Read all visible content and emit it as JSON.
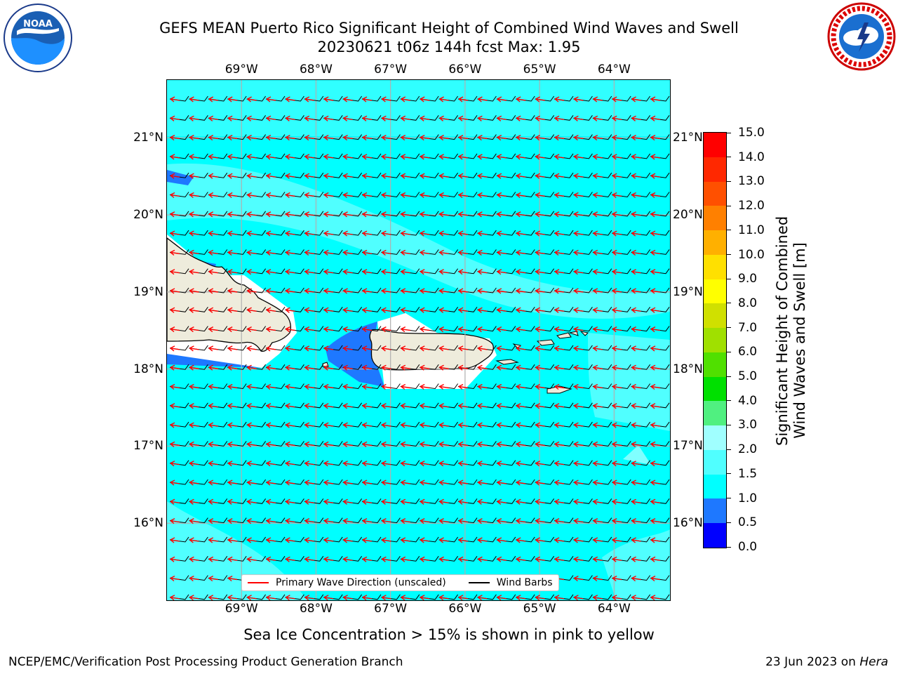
{
  "header": {
    "title_line1": "GEFS MEAN Puerto Rico Significant Height of Combined Wind Waves and Swell",
    "title_line2": "20230621 t06z 144h fcst   Max: 1.95"
  },
  "logos": {
    "left": {
      "name": "noaa-logo",
      "text": "NOAA"
    },
    "right": {
      "name": "nws-logo",
      "text": "NATIONAL WEATHER SERVICE"
    }
  },
  "map": {
    "lon_ticks": [
      "69°W",
      "68°W",
      "67°W",
      "66°W",
      "65°W",
      "64°W"
    ],
    "lat_ticks": [
      "21°N",
      "20°N",
      "19°N",
      "18°N",
      "17°N",
      "16°N"
    ],
    "lon_values": [
      -69,
      -68,
      -67,
      -66,
      -65,
      -64
    ],
    "lat_values": [
      21,
      20,
      19,
      18,
      17,
      16
    ],
    "lon_range": [
      -70,
      -63.25
    ],
    "lat_range": [
      15,
      21.75
    ],
    "ocean_color": "#00ffff",
    "land_color": "#eeecdc"
  },
  "legend": {
    "wave_label": "Primary Wave Direction (unscaled)",
    "wind_label": "Wind Barbs",
    "wave_color": "#ff0000",
    "wind_color": "#000000"
  },
  "colorbar": {
    "label_line1": "Significant Height of Combined",
    "label_line2": "Wind Waves and Swell [m]",
    "ticks": [
      "15.0",
      "14.0",
      "13.0",
      "12.0",
      "11.0",
      "10.0",
      "9.0",
      "8.0",
      "7.0",
      "6.0",
      "5.0",
      "4.0",
      "3.0",
      "2.0",
      "1.5",
      "1.0",
      "0.5",
      "0.0"
    ],
    "levels": [
      0.0,
      0.5,
      1.0,
      1.5,
      2.0,
      3.0,
      4.0,
      5.0,
      6.0,
      7.0,
      8.0,
      9.0,
      10.0,
      11.0,
      12.0,
      13.0,
      14.0,
      15.0
    ],
    "colors": [
      "#0000ff",
      "#1e78ff",
      "#00ffff",
      "#50ffff",
      "#a0ffff",
      "#50f080",
      "#00e000",
      "#50e000",
      "#a0e000",
      "#d0e000",
      "#ffff00",
      "#ffe000",
      "#ffb000",
      "#ff8000",
      "#ff5000",
      "#ff2800",
      "#ff0000"
    ]
  },
  "caption": "Sea Ice Concentration > 15% is shown in pink to yellow",
  "footer": {
    "left": "NCEP/EMC/Verification Post Processing Product Generation Branch",
    "right_date": "23 Jun 2023 on ",
    "right_host": "Hera"
  }
}
